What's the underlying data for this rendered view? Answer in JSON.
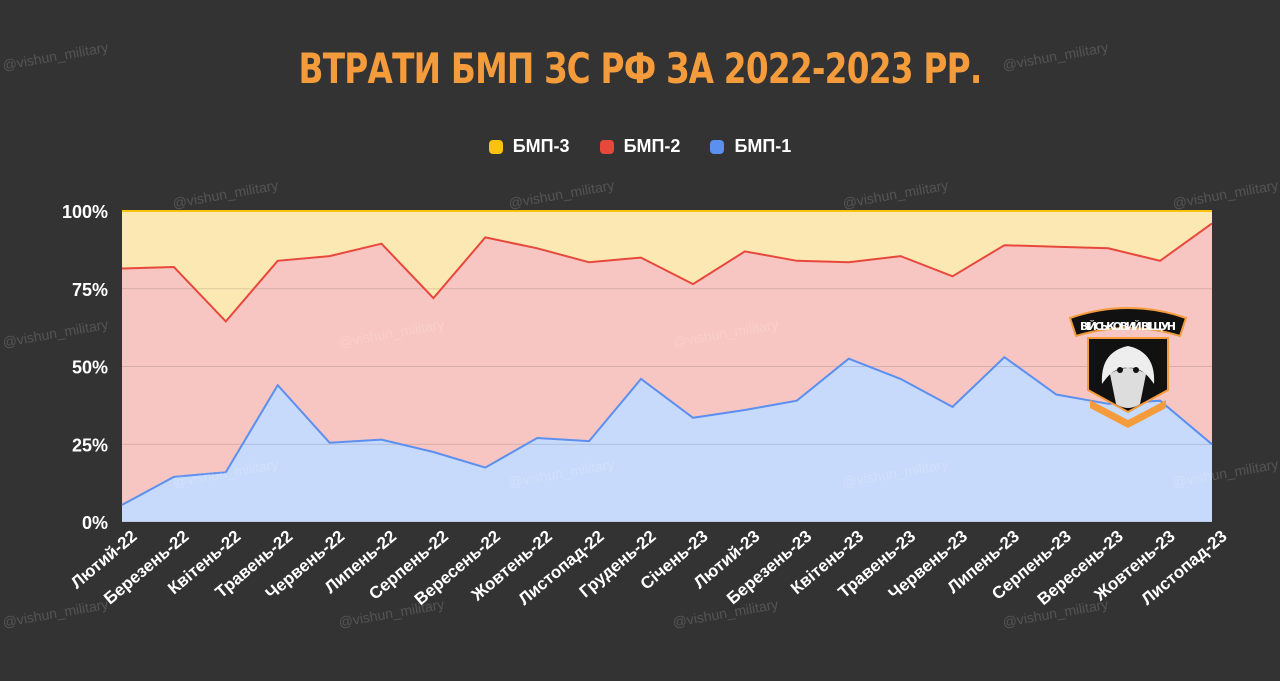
{
  "title": "ВТРАТИ БМП ЗС РФ ЗА 2022-2023 РР.",
  "watermark": "@vishun_military",
  "logo_text": "ВІЙСЬКОВИЙ ВІЩУН",
  "colors": {
    "background": "#333333",
    "title": "#f49b3c",
    "bmp3_line": "#f9c20f",
    "bmp3_fill": "#fce8b2",
    "bmp2_line": "#e8483b",
    "bmp2_fill": "#f8c6c2",
    "bmp1_line": "#5b8ff0",
    "bmp1_fill": "#c8dafb"
  },
  "chart_data": {
    "type": "area",
    "stacking": "percent",
    "legend_position": "top",
    "grid": true,
    "ylim": [
      0,
      100
    ],
    "y_ticks": [
      "0%",
      "25%",
      "50%",
      "75%",
      "100%"
    ],
    "categories": [
      "Лютий-22",
      "Березень-22",
      "Квітень-22",
      "Травень-22",
      "Червень-22",
      "Липень-22",
      "Серпень-22",
      "Вересень-22",
      "Жовтень-22",
      "Листопад-22",
      "Грудень-22",
      "Січень-23",
      "Лютий-23",
      "Березень-23",
      "Квітень-23",
      "Травень-23",
      "Червень-23",
      "Липень-23",
      "Серпень-23",
      "Вересень-23",
      "Жовтень-23",
      "Листопад-23"
    ],
    "series": [
      {
        "name": "БМП-3",
        "values": [
          18.5,
          18,
          35.5,
          16,
          14.5,
          10.5,
          28,
          8.5,
          12,
          16.5,
          15,
          23.5,
          13,
          16,
          16.5,
          14.5,
          21,
          11,
          11.5,
          12,
          16,
          4
        ]
      },
      {
        "name": "БМП-2",
        "values": [
          76,
          67.5,
          48.5,
          40,
          60,
          63,
          49.5,
          74,
          61,
          57.5,
          39,
          43,
          51,
          45,
          31,
          39.5,
          42,
          36,
          47.5,
          50,
          45,
          71
        ]
      },
      {
        "name": "БМП-1",
        "values": [
          5.5,
          14.5,
          16,
          44,
          25.5,
          26.5,
          22.5,
          17.5,
          27,
          26,
          46,
          33.5,
          36,
          39,
          52.5,
          46,
          37,
          53,
          41,
          38,
          39,
          25
        ]
      }
    ]
  }
}
